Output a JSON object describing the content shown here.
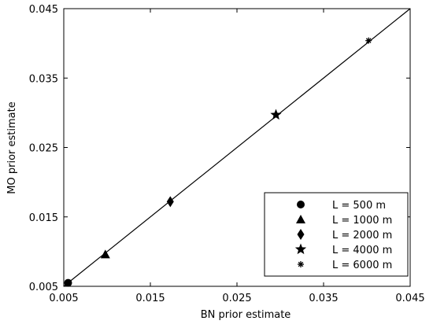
{
  "chart_data": {
    "type": "scatter",
    "title": "",
    "xlabel": "BN prior estimate",
    "ylabel": "MO prior estimate",
    "xlim": [
      0.005,
      0.045
    ],
    "ylim": [
      0.005,
      0.045
    ],
    "x_ticks": [
      "0.005",
      "0.015",
      "0.025",
      "0.035",
      "0.045"
    ],
    "y_ticks": [
      "0.005",
      "0.015",
      "0.025",
      "0.035",
      "0.045"
    ],
    "grid": false,
    "legend_position": "bottom-right",
    "reference_line": {
      "x": [
        0.005,
        0.045
      ],
      "y": [
        0.005,
        0.045
      ],
      "color": "#000000"
    },
    "series": [
      {
        "name": "L = 500 m",
        "marker": "circle",
        "x": [
          0.0055
        ],
        "y": [
          0.0055
        ]
      },
      {
        "name": "L = 1000 m",
        "marker": "triangle",
        "x": [
          0.0098
        ],
        "y": [
          0.0096
        ]
      },
      {
        "name": "L = 2000 m",
        "marker": "diamond",
        "x": [
          0.0173
        ],
        "y": [
          0.0172
        ]
      },
      {
        "name": "L = 4000 m",
        "marker": "star",
        "x": [
          0.0295
        ],
        "y": [
          0.0297
        ]
      },
      {
        "name": "L = 6000 m",
        "marker": "asterisk",
        "x": [
          0.0402
        ],
        "y": [
          0.0404
        ]
      }
    ],
    "colors": {
      "marker": "#000000",
      "axis": "#000000",
      "background": "#ffffff"
    }
  }
}
